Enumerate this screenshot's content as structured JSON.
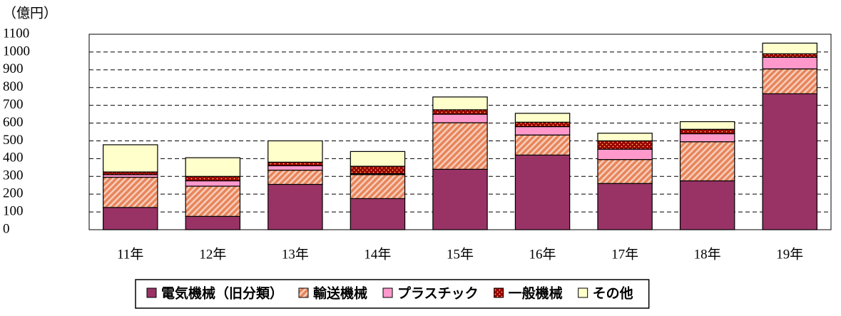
{
  "chart_data": {
    "type": "stacked_bar",
    "y_axis_label": "（億円）",
    "categories": [
      "11年",
      "12年",
      "13年",
      "14年",
      "15年",
      "16年",
      "17年",
      "18年",
      "19年"
    ],
    "series": [
      {
        "name": "電気機械（旧分類）",
        "color": "#993366",
        "values": [
          125,
          75,
          255,
          175,
          340,
          420,
          260,
          275,
          765
        ]
      },
      {
        "name": "輸送機械",
        "color": "#e8855a",
        "pattern": "hatch",
        "values": [
          170,
          170,
          80,
          135,
          262,
          113,
          135,
          220,
          140
        ]
      },
      {
        "name": "プラスチック",
        "color": "#ff99cc",
        "values": [
          15,
          30,
          25,
          5,
          48,
          47,
          58,
          45,
          65
        ]
      },
      {
        "name": "一般機械",
        "color": "#990000",
        "pattern": "dots",
        "values": [
          15,
          25,
          20,
          42,
          25,
          25,
          47,
          25,
          20
        ]
      },
      {
        "name": "その他",
        "color": "#ffffcc",
        "values": [
          153,
          105,
          120,
          83,
          72,
          50,
          43,
          43,
          60
        ]
      }
    ],
    "ylim": [
      0,
      1100
    ],
    "yticks": [
      0,
      100,
      200,
      300,
      400,
      500,
      600,
      700,
      800,
      900,
      1000,
      1100
    ],
    "grid": true,
    "legend": "bottom"
  }
}
